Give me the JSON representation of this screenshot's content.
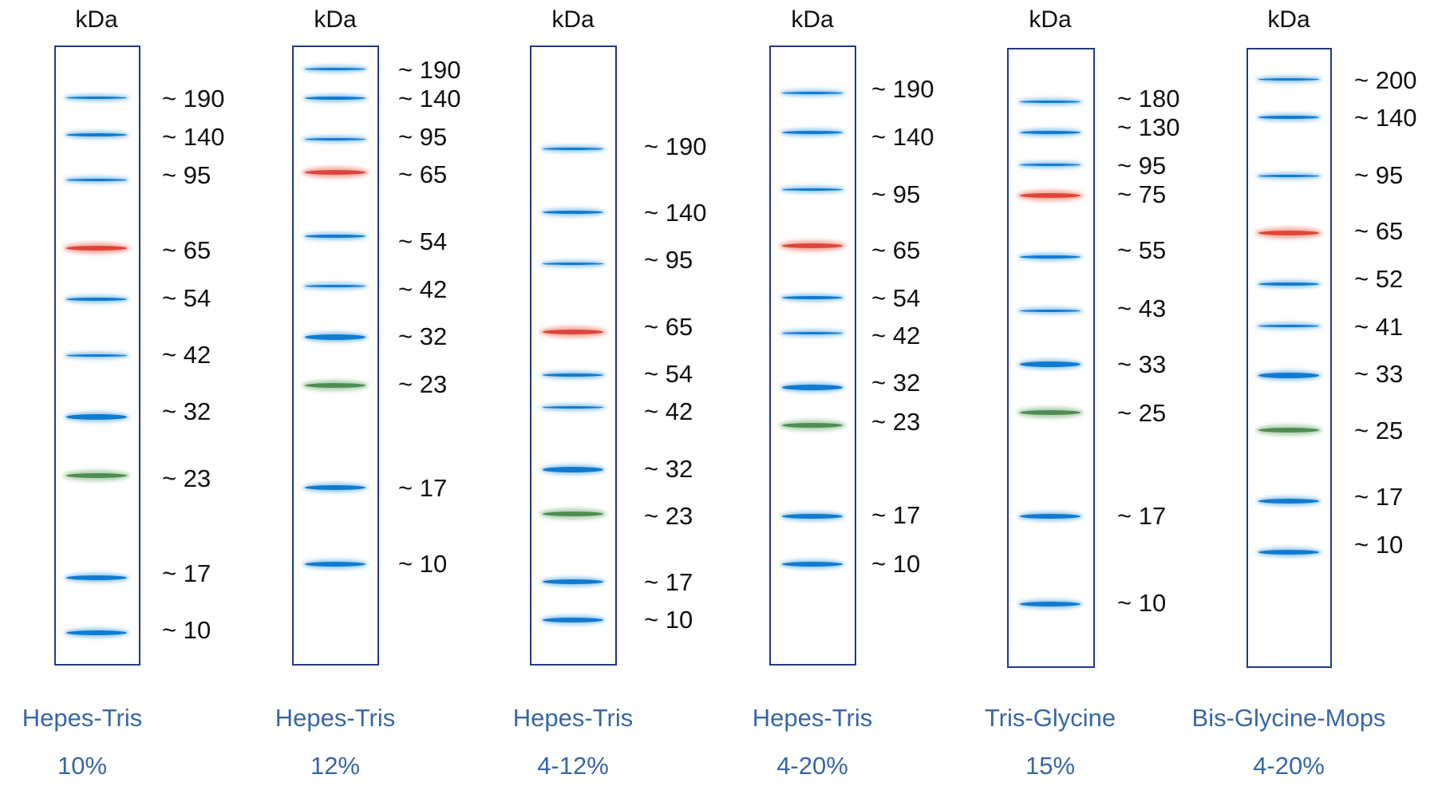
{
  "panels": [
    {
      "unit": "kDa",
      "buffer": "Hepes-Tris",
      "percent": "10%",
      "bands": [
        {
          "label": "~ 190",
          "color": "blue"
        },
        {
          "label": "~ 140",
          "color": "blue"
        },
        {
          "label": "~ 95",
          "color": "blue"
        },
        {
          "label": "~ 65",
          "color": "red"
        },
        {
          "label": "~ 54",
          "color": "blue"
        },
        {
          "label": "~ 42",
          "color": "blue"
        },
        {
          "label": "~ 32",
          "color": "blue"
        },
        {
          "label": "~ 23",
          "color": "green"
        },
        {
          "label": "~ 17",
          "color": "blue"
        },
        {
          "label": "~ 10",
          "color": "blue"
        }
      ]
    },
    {
      "unit": "kDa",
      "buffer": "Hepes-Tris",
      "percent": "12%",
      "bands": [
        {
          "label": "~ 190",
          "color": "blue"
        },
        {
          "label": "~ 140",
          "color": "blue"
        },
        {
          "label": "~ 95",
          "color": "blue"
        },
        {
          "label": "~ 65",
          "color": "red"
        },
        {
          "label": "~ 54",
          "color": "blue"
        },
        {
          "label": "~ 42",
          "color": "blue"
        },
        {
          "label": "~ 32",
          "color": "blue"
        },
        {
          "label": "~ 23",
          "color": "green"
        },
        {
          "label": "~ 17",
          "color": "blue"
        },
        {
          "label": "~ 10",
          "color": "blue"
        }
      ]
    },
    {
      "unit": "kDa",
      "buffer": "Hepes-Tris",
      "percent": "4-12%",
      "bands": [
        {
          "label": "~ 190",
          "color": "blue"
        },
        {
          "label": "~ 140",
          "color": "blue"
        },
        {
          "label": "~ 95",
          "color": "blue"
        },
        {
          "label": "~ 65",
          "color": "red"
        },
        {
          "label": "~ 54",
          "color": "blue"
        },
        {
          "label": "~ 42",
          "color": "blue"
        },
        {
          "label": "~ 32",
          "color": "blue"
        },
        {
          "label": "~ 23",
          "color": "green"
        },
        {
          "label": "~ 17",
          "color": "blue"
        },
        {
          "label": "~ 10",
          "color": "blue"
        }
      ]
    },
    {
      "unit": "kDa",
      "buffer": "Hepes-Tris",
      "percent": "4-20%",
      "bands": [
        {
          "label": "~ 190",
          "color": "blue"
        },
        {
          "label": "~ 140",
          "color": "blue"
        },
        {
          "label": "~ 95",
          "color": "blue"
        },
        {
          "label": "~ 65",
          "color": "red"
        },
        {
          "label": "~ 54",
          "color": "blue"
        },
        {
          "label": "~ 42",
          "color": "blue"
        },
        {
          "label": "~ 32",
          "color": "blue"
        },
        {
          "label": "~ 23",
          "color": "green"
        },
        {
          "label": "~ 17",
          "color": "blue"
        },
        {
          "label": "~ 10",
          "color": "blue"
        }
      ]
    },
    {
      "unit": "kDa",
      "buffer": "Tris-Glycine",
      "percent": "15%",
      "bands": [
        {
          "label": "~ 180",
          "color": "blue"
        },
        {
          "label": "~ 130",
          "color": "blue"
        },
        {
          "label": "~ 95",
          "color": "blue"
        },
        {
          "label": "~ 75",
          "color": "red"
        },
        {
          "label": "~ 55",
          "color": "blue"
        },
        {
          "label": "~ 43",
          "color": "blue"
        },
        {
          "label": "~ 33",
          "color": "blue"
        },
        {
          "label": "~ 25",
          "color": "green"
        },
        {
          "label": "~ 17",
          "color": "blue"
        },
        {
          "label": "~ 10",
          "color": "blue"
        }
      ]
    },
    {
      "unit": "kDa",
      "buffer": "Bis-Glycine-Mops",
      "percent": "4-20%",
      "bands": [
        {
          "label": "~ 200",
          "color": "blue"
        },
        {
          "label": "~ 140",
          "color": "blue"
        },
        {
          "label": "~ 95",
          "color": "blue"
        },
        {
          "label": "~ 65",
          "color": "red"
        },
        {
          "label": "~ 52",
          "color": "blue"
        },
        {
          "label": "~ 41",
          "color": "blue"
        },
        {
          "label": "~ 33",
          "color": "blue"
        },
        {
          "label": "~ 25",
          "color": "green"
        },
        {
          "label": "~ 17",
          "color": "blue"
        },
        {
          "label": "~ 10",
          "color": "blue"
        }
      ]
    }
  ]
}
